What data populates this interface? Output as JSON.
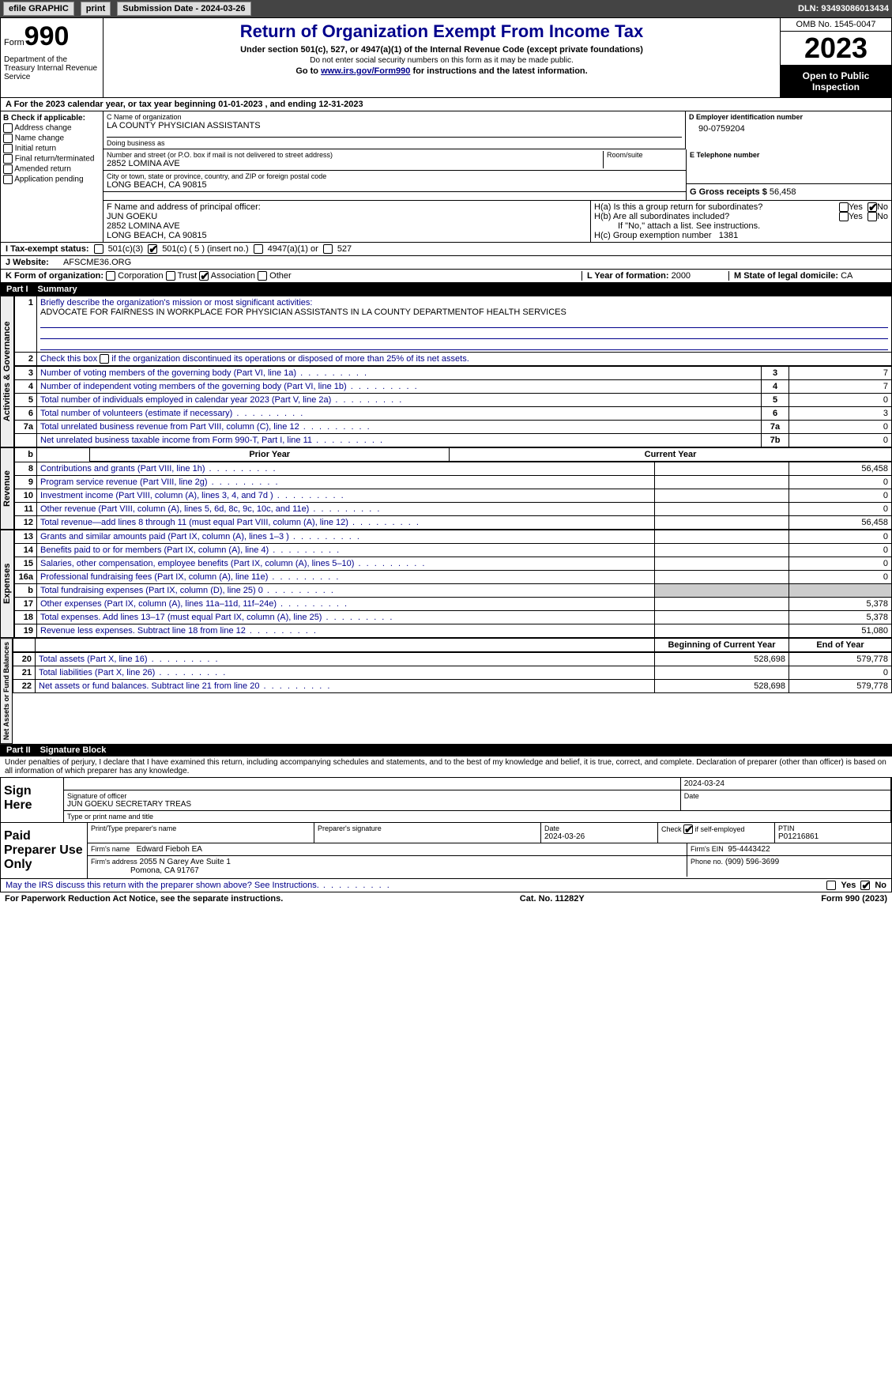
{
  "toolbar": {
    "efile": "efile GRAPHIC",
    "print": "print",
    "submission": "Submission Date - 2024-03-26",
    "dln": "DLN: 93493086013434"
  },
  "header": {
    "form_prefix": "Form",
    "form_number": "990",
    "title": "Return of Organization Exempt From Income Tax",
    "subtitle": "Under section 501(c), 527, or 4947(a)(1) of the Internal Revenue Code (except private foundations)",
    "ssn_note": "Do not enter social security numbers on this form as it may be made public.",
    "goto": "Go to ",
    "goto_link": "www.irs.gov/Form990",
    "goto_suffix": " for instructions and the latest information.",
    "omb": "OMB No. 1545-0047",
    "year": "2023",
    "open_pub": "Open to Public Inspection",
    "dept": "Department of the Treasury Internal Revenue Service"
  },
  "lineA": "For the 2023 calendar year, or tax year beginning 01-01-2023    , and ending 12-31-2023",
  "boxB": {
    "title": "B Check if applicable:",
    "opts": [
      "Address change",
      "Name change",
      "Initial return",
      "Final return/terminated",
      "Amended return",
      "Application pending"
    ]
  },
  "boxC": {
    "name_label": "C Name of organization",
    "name": "LA COUNTY PHYSICIAN ASSISTANTS",
    "dba_label": "Doing business as",
    "dba": "",
    "addr_label": "Number and street (or P.O. box if mail is not delivered to street address)",
    "room_label": "Room/suite",
    "addr": "2852 LOMINA AVE",
    "city_label": "City or town, state or province, country, and ZIP or foreign postal code",
    "city": "LONG BEACH, CA  90815"
  },
  "boxD": {
    "label": "D Employer identification number",
    "val": "90-0759204"
  },
  "boxE": {
    "label": "E Telephone number",
    "val": ""
  },
  "boxG": {
    "label": "G Gross receipts $",
    "val": "56,458"
  },
  "boxF": {
    "label": "F  Name and address of principal officer:",
    "name": "JUN GOEKU",
    "addr1": "2852 LOMINA AVE",
    "addr2": "LONG BEACH, CA  90815"
  },
  "boxH": {
    "a": "H(a)  Is this a group return for subordinates?",
    "b": "H(b)  Are all subordinates included?",
    "b_note": "If \"No,\" attach a list. See instructions.",
    "c": "H(c)  Group exemption number",
    "c_val": "1381",
    "yes": "Yes",
    "no": "No"
  },
  "boxI": {
    "label": "I  Tax-exempt status:",
    "opt1": "501(c)(3)",
    "opt2": "501(c) ( 5 ) (insert no.)",
    "opt3": "4947(a)(1) or",
    "opt4": "527"
  },
  "boxJ": {
    "label": "J  Website:",
    "val": "AFSCME36.ORG"
  },
  "boxK": {
    "label": "K Form of organization:",
    "opts": [
      "Corporation",
      "Trust",
      "Association",
      "Other"
    ],
    "checked_idx": 2
  },
  "boxL": {
    "label": "L Year of formation:",
    "val": "2000"
  },
  "boxM": {
    "label": "M State of legal domicile:",
    "val": "CA"
  },
  "part1": {
    "num": "Part I",
    "title": "Summary"
  },
  "summary": {
    "l1_label": "Briefly describe the organization's mission or most significant activities:",
    "l1_val": "ADVOCATE FOR FAIRNESS IN WORKPLACE FOR PHYSICIAN ASSISTANTS IN LA COUNTY DEPARTMENTOF HEALTH SERVICES",
    "l2": "Check this box      if the organization discontinued its operations or disposed of more than 25% of its net assets.",
    "rows_gov": [
      {
        "n": "3",
        "d": "Number of voting members of the governing body (Part VI, line 1a)",
        "l": "3",
        "v": "7"
      },
      {
        "n": "4",
        "d": "Number of independent voting members of the governing body (Part VI, line 1b)",
        "l": "4",
        "v": "7"
      },
      {
        "n": "5",
        "d": "Total number of individuals employed in calendar year 2023 (Part V, line 2a)",
        "l": "5",
        "v": "0"
      },
      {
        "n": "6",
        "d": "Total number of volunteers (estimate if necessary)",
        "l": "6",
        "v": "3"
      },
      {
        "n": "7a",
        "d": "Total unrelated business revenue from Part VIII, column (C), line 12",
        "l": "7a",
        "v": "0"
      },
      {
        "n": "",
        "d": "Net unrelated business taxable income from Form 990-T, Part I, line 11",
        "l": "7b",
        "v": "0"
      }
    ],
    "col_prior": "Prior Year",
    "col_curr": "Current Year",
    "rows_rev": [
      {
        "n": "8",
        "d": "Contributions and grants (Part VIII, line 1h)",
        "p": "",
        "c": "56,458"
      },
      {
        "n": "9",
        "d": "Program service revenue (Part VIII, line 2g)",
        "p": "",
        "c": "0"
      },
      {
        "n": "10",
        "d": "Investment income (Part VIII, column (A), lines 3, 4, and 7d )",
        "p": "",
        "c": "0"
      },
      {
        "n": "11",
        "d": "Other revenue (Part VIII, column (A), lines 5, 6d, 8c, 9c, 10c, and 11e)",
        "p": "",
        "c": "0"
      },
      {
        "n": "12",
        "d": "Total revenue—add lines 8 through 11 (must equal Part VIII, column (A), line 12)",
        "p": "",
        "c": "56,458"
      }
    ],
    "rows_exp": [
      {
        "n": "13",
        "d": "Grants and similar amounts paid (Part IX, column (A), lines 1–3 )",
        "p": "",
        "c": "0"
      },
      {
        "n": "14",
        "d": "Benefits paid to or for members (Part IX, column (A), line 4)",
        "p": "",
        "c": "0"
      },
      {
        "n": "15",
        "d": "Salaries, other compensation, employee benefits (Part IX, column (A), lines 5–10)",
        "p": "",
        "c": "0"
      },
      {
        "n": "16a",
        "d": "Professional fundraising fees (Part IX, column (A), line 11e)",
        "p": "",
        "c": "0"
      },
      {
        "n": "b",
        "d": "Total fundraising expenses (Part IX, column (D), line 25) 0",
        "p": "grey",
        "c": "grey"
      },
      {
        "n": "17",
        "d": "Other expenses (Part IX, column (A), lines 11a–11d, 11f–24e)",
        "p": "",
        "c": "5,378"
      },
      {
        "n": "18",
        "d": "Total expenses. Add lines 13–17 (must equal Part IX, column (A), line 25)",
        "p": "",
        "c": "5,378"
      },
      {
        "n": "19",
        "d": "Revenue less expenses. Subtract line 18 from line 12",
        "p": "",
        "c": "51,080"
      }
    ],
    "col_begin": "Beginning of Current Year",
    "col_end": "End of Year",
    "rows_net": [
      {
        "n": "20",
        "d": "Total assets (Part X, line 16)",
        "p": "528,698",
        "c": "579,778"
      },
      {
        "n": "21",
        "d": "Total liabilities (Part X, line 26)",
        "p": "",
        "c": "0"
      },
      {
        "n": "22",
        "d": "Net assets or fund balances. Subtract line 21 from line 20",
        "p": "528,698",
        "c": "579,778"
      }
    ],
    "tabs": {
      "gov": "Activities & Governance",
      "rev": "Revenue",
      "exp": "Expenses",
      "net": "Net Assets or Fund Balances"
    }
  },
  "part2": {
    "num": "Part II",
    "title": "Signature Block"
  },
  "perjury": "Under penalties of perjury, I declare that I have examined this return, including accompanying schedules and statements, and to the best of my knowledge and belief, it is true, correct, and complete. Declaration of preparer (other than officer) is based on all information of which preparer has any knowledge.",
  "sign": {
    "here": "Sign Here",
    "sig_label": "Signature of officer",
    "officer": "JUN GOEKU SECRETARY TREAS",
    "type_label": "Type or print name and title",
    "date_label": "Date",
    "date": "2024-03-24"
  },
  "paid": {
    "title": "Paid Preparer Use Only",
    "prep_name_label": "Print/Type preparer's name",
    "prep_sig_label": "Preparer's signature",
    "date_label": "Date",
    "date": "2024-03-26",
    "check_label": "Check        if self-employed",
    "ptin_label": "PTIN",
    "ptin": "P01216861",
    "firm_name_label": "Firm's name",
    "firm_name": "Edward Fieboh EA",
    "firm_ein_label": "Firm's EIN",
    "firm_ein": "95-4443422",
    "firm_addr_label": "Firm's address",
    "firm_addr1": "2055 N Garey Ave Suite 1",
    "firm_addr2": "Pomona, CA  91767",
    "phone_label": "Phone no.",
    "phone": "(909) 596-3699"
  },
  "discuss": {
    "text": "May the IRS discuss this return with the preparer shown above? See Instructions.",
    "yes": "Yes",
    "no": "No"
  },
  "footer": {
    "pra": "For Paperwork Reduction Act Notice, see the separate instructions.",
    "cat": "Cat. No. 11282Y",
    "form": "Form 990 (2023)"
  }
}
